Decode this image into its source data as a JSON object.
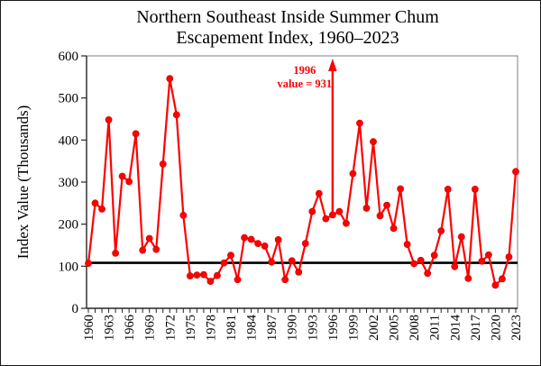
{
  "title_line1": "Northern Southeast Inside Summer Chum",
  "title_line2": "Escapement Index, 1960–2023",
  "chart_data": {
    "type": "line",
    "title": "Northern Southeast Inside Summer Chum Escapement Index, 1960–2023",
    "xlabel": "",
    "ylabel": "Index Value (Thousands)",
    "ylim": [
      0,
      600
    ],
    "yticks": [
      0,
      100,
      200,
      300,
      400,
      500,
      600
    ],
    "xtick_label_interval_years": 3,
    "grid": false,
    "legend": "none",
    "marker": "circle",
    "series_color": "#fe0000",
    "years": [
      1960,
      1961,
      1962,
      1963,
      1964,
      1965,
      1966,
      1967,
      1968,
      1969,
      1970,
      1971,
      1972,
      1973,
      1974,
      1975,
      1976,
      1977,
      1978,
      1979,
      1980,
      1981,
      1982,
      1983,
      1984,
      1985,
      1986,
      1987,
      1988,
      1989,
      1990,
      1991,
      1992,
      1993,
      1994,
      1995,
      1996,
      1997,
      1998,
      1999,
      2000,
      2001,
      2002,
      2003,
      2004,
      2005,
      2006,
      2007,
      2008,
      2009,
      2010,
      2011,
      2012,
      2013,
      2014,
      2015,
      2016,
      2017,
      2018,
      2019,
      2020,
      2021,
      2022,
      2023
    ],
    "values": [
      107,
      250,
      236,
      448,
      131,
      314,
      301,
      415,
      138,
      166,
      140,
      343,
      546,
      460,
      221,
      77,
      79,
      80,
      64,
      78,
      108,
      126,
      68,
      168,
      164,
      154,
      148,
      110,
      163,
      68,
      113,
      86,
      154,
      230,
      273,
      213,
      222,
      230,
      202,
      320,
      440,
      238,
      396,
      220,
      245,
      190,
      284,
      152,
      106,
      114,
      83,
      126,
      184,
      283,
      99,
      170,
      71,
      283,
      112,
      127,
      55,
      70,
      122,
      325
    ],
    "reference_line": {
      "value": 108,
      "color": "#000000"
    },
    "annotation": {
      "text_line1": "1996",
      "text_line2": "value = 931",
      "year": 1996,
      "actual_value": 931,
      "plotted_value": 222,
      "color": "#fe0000"
    }
  }
}
